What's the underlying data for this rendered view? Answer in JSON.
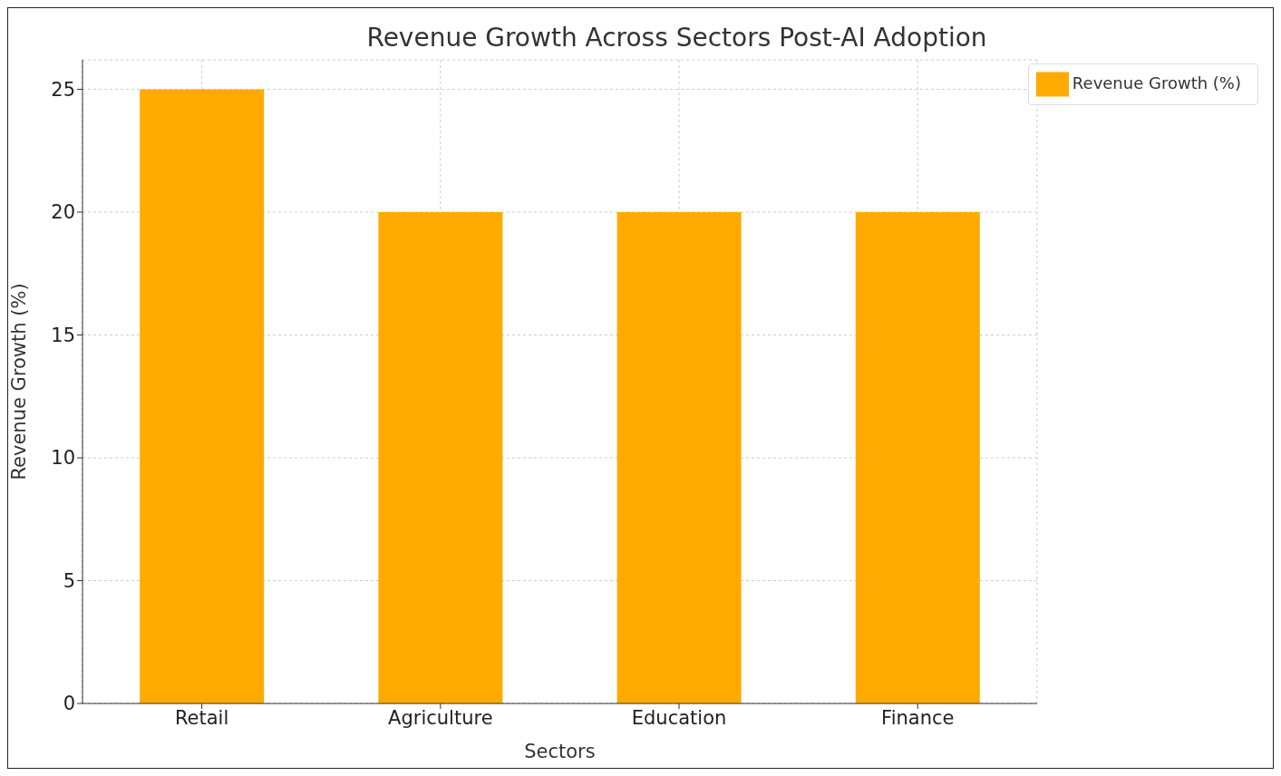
{
  "chart_data": {
    "type": "bar",
    "title": "Revenue Growth Across Sectors Post-AI Adoption",
    "xlabel": "Sectors",
    "ylabel": "Revenue Growth (%)",
    "categories": [
      "Retail",
      "Agriculture",
      "Education",
      "Finance"
    ],
    "series": [
      {
        "name": "Revenue Growth (%)",
        "color": "#ffaa00",
        "values": [
          25,
          20,
          20,
          20
        ]
      }
    ],
    "ylim": [
      0,
      26.2
    ],
    "yticks": [
      0,
      5,
      10,
      15,
      20,
      25
    ],
    "grid": true,
    "legend": "top right"
  }
}
